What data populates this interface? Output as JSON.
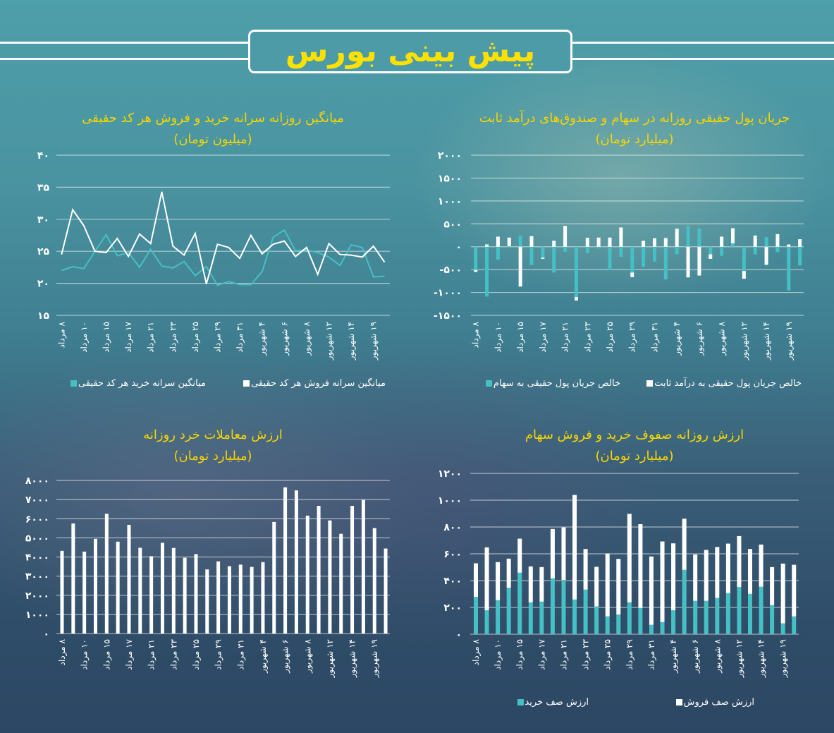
{
  "header": {
    "title": "پیش بینی بورس"
  },
  "colors": {
    "teal": "#45c0c4",
    "white": "#ffffff",
    "title_yellow": "#f7d600"
  },
  "x_labels": [
    "۸ مرداد",
    "۱۰ مرداد",
    "۱۵ مرداد",
    "۱۷ مرداد",
    "۲۱ مرداد",
    "۲۳ مرداد",
    "۲۵ مرداد",
    "۲۹ مرداد",
    "۳۱ مرداد",
    "۴ شهریور",
    "۶ شهریور",
    "۸ شهریور",
    "۱۲ شهریور",
    "۱۴ شهریور",
    "۱۹ شهریور"
  ],
  "chart_data": [
    {
      "id": "flow",
      "type": "bar",
      "stacked": true,
      "title": "جریان پول حقیقی روزانه در سهام و صندوق‌های درآمد ثابت",
      "subtitle": "(میلیارد تومان)",
      "ylim": [
        -1500,
        2000
      ],
      "yticks": [
        "۲۰۰۰",
        "۱۵۰۰",
        "۱۰۰۰",
        "۵۰۰",
        "۰",
        "-۵۰۰",
        "-۱۰۰۰",
        "-۱۵۰۰"
      ],
      "ytick_values": [
        2000,
        1500,
        1000,
        500,
        0,
        -500,
        -1000,
        -1500
      ],
      "grid": true,
      "legend": "bottom",
      "series": [
        {
          "name": "خالص جریان پول حقیقی به سهام",
          "color": "#45c0c4",
          "values": [
            -510,
            -1090,
            -280,
            10,
            245,
            -400,
            -240,
            -565,
            -110,
            -1100,
            -140,
            -40,
            -515,
            -220,
            -565,
            -440,
            -325,
            -715,
            -165,
            460,
            400,
            -165,
            -200,
            75,
            -530,
            -165,
            210,
            -120,
            -955,
            -410
          ]
        },
        {
          "name": "خالص جریان پول حقیقی به درآمد ثابت",
          "color": "#ffffff",
          "values": [
            -40,
            50,
            220,
            190,
            -870,
            230,
            -25,
            130,
            455,
            -75,
            195,
            200,
            200,
            420,
            -100,
            130,
            185,
            190,
            395,
            -670,
            -630,
            -100,
            220,
            330,
            -170,
            245,
            -395,
            275,
            50,
            165
          ]
        }
      ]
    },
    {
      "id": "percapita",
      "type": "line",
      "title": "میانگین روزانه سرانه خرید و فروش هر کد حقیقی",
      "subtitle": "(میلیون تومان)",
      "ylim": [
        15,
        40
      ],
      "yticks": [
        "۴۰",
        "۳۵",
        "۳۰",
        "۲۵",
        "۲۰",
        "۱۵"
      ],
      "ytick_values": [
        40,
        35,
        30,
        25,
        20,
        15
      ],
      "grid": true,
      "legend": "bottom",
      "series": [
        {
          "name": "میانگین سرانه خرید هر کد حقیقی",
          "color": "#45c0c4",
          "values": [
            22.0,
            22.6,
            22.3,
            25.0,
            27.6,
            24.3,
            24.8,
            22.5,
            25.3,
            22.7,
            22.4,
            23.4,
            21.2,
            22.6,
            19.7,
            20.3,
            19.8,
            19.8,
            21.8,
            27.2,
            28.3,
            25.1,
            25.2,
            24.8,
            24.1,
            22.8,
            26.0,
            25.6,
            21.0,
            21.1
          ]
        },
        {
          "name": "میانگین سرانه فروش هر کد حقیقی",
          "color": "#ffffff",
          "values": [
            24.5,
            31.5,
            29.0,
            25.0,
            24.8,
            27.0,
            24.2,
            27.7,
            26.2,
            34.3,
            25.8,
            24.4,
            27.8,
            19.9,
            26.1,
            25.6,
            23.9,
            27.5,
            24.6,
            26.1,
            26.6,
            24.2,
            25.6,
            21.4,
            26.2,
            24.5,
            24.4,
            24.1,
            25.8,
            23.3
          ]
        }
      ]
    },
    {
      "id": "queues",
      "type": "bar",
      "stacked": true,
      "title": "ارزش روزانه صفوف خرید و فروش سهام",
      "subtitle": "(میلیارد تومان)",
      "ylim": [
        0,
        1200
      ],
      "yticks": [
        "۱۲۰۰",
        "۱۰۰۰",
        "۸۰۰",
        "۶۰۰",
        "۴۰۰",
        "۲۰۰",
        "۰"
      ],
      "ytick_values": [
        1200,
        1000,
        800,
        600,
        400,
        200,
        0
      ],
      "grid": true,
      "legend": "bottom",
      "series": [
        {
          "name": "ارزش صف خرید",
          "color": "#45c0c4",
          "values": [
            278,
            179,
            254,
            347,
            459,
            238,
            243,
            417,
            405,
            259,
            333,
            207,
            133,
            147,
            238,
            196,
            70,
            91,
            179,
            480,
            249,
            249,
            271,
            306,
            352,
            301,
            354,
            217,
            81,
            133
          ]
        },
        {
          "name": "ارزش صف فروش",
          "color": "#ffffff",
          "values": [
            251,
            469,
            284,
            217,
            254,
            268,
            258,
            368,
            392,
            780,
            303,
            296,
            469,
            415,
            660,
            625,
            510,
            601,
            499,
            382,
            346,
            380,
            380,
            370,
            380,
            335,
            315,
            284,
            446,
            385
          ]
        }
      ]
    },
    {
      "id": "retail",
      "type": "bar",
      "title": "ارزش معاملات خرد روزانه",
      "subtitle": "(میلیارد تومان)",
      "ylim": [
        0,
        8000
      ],
      "yticks": [
        "۸۰۰۰",
        "۷۰۰۰",
        "۶۰۰۰",
        "۵۰۰۰",
        "۴۰۰۰",
        "۳۰۰۰",
        "۲۰۰۰",
        "۱۰۰۰",
        "۰"
      ],
      "ytick_values": [
        8000,
        7000,
        6000,
        5000,
        4000,
        3000,
        2000,
        1000,
        0
      ],
      "grid": true,
      "series": [
        {
          "color": "#ffffff",
          "values": [
            4320,
            5750,
            4280,
            4945,
            6260,
            4800,
            5680,
            4480,
            4040,
            4740,
            4470,
            3960,
            4150,
            3350,
            3770,
            3520,
            3600,
            3480,
            3730,
            5830,
            7640,
            7480,
            6160,
            6670,
            5910,
            5210,
            6670,
            6980,
            5510,
            4440
          ]
        }
      ]
    }
  ]
}
